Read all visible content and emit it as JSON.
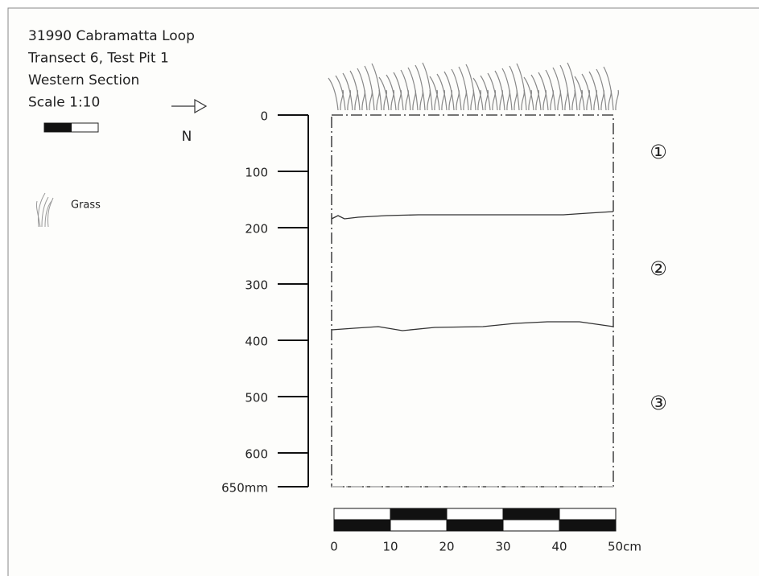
{
  "header": {
    "lines": [
      "31990 Cabramatta Loop",
      "Transect 6, Test Pit 1",
      "Western Section",
      "Scale 1:10"
    ]
  },
  "north": "N",
  "legend": {
    "label": "Grass"
  },
  "depth_axis": {
    "ticks": [
      "0",
      "100",
      "200",
      "300",
      "400",
      "500",
      "600",
      "650mm"
    ]
  },
  "layers": [
    "①",
    "②",
    "③"
  ],
  "width_scale": {
    "ticks": [
      "0",
      "10",
      "20",
      "30",
      "40",
      "50cm"
    ]
  }
}
